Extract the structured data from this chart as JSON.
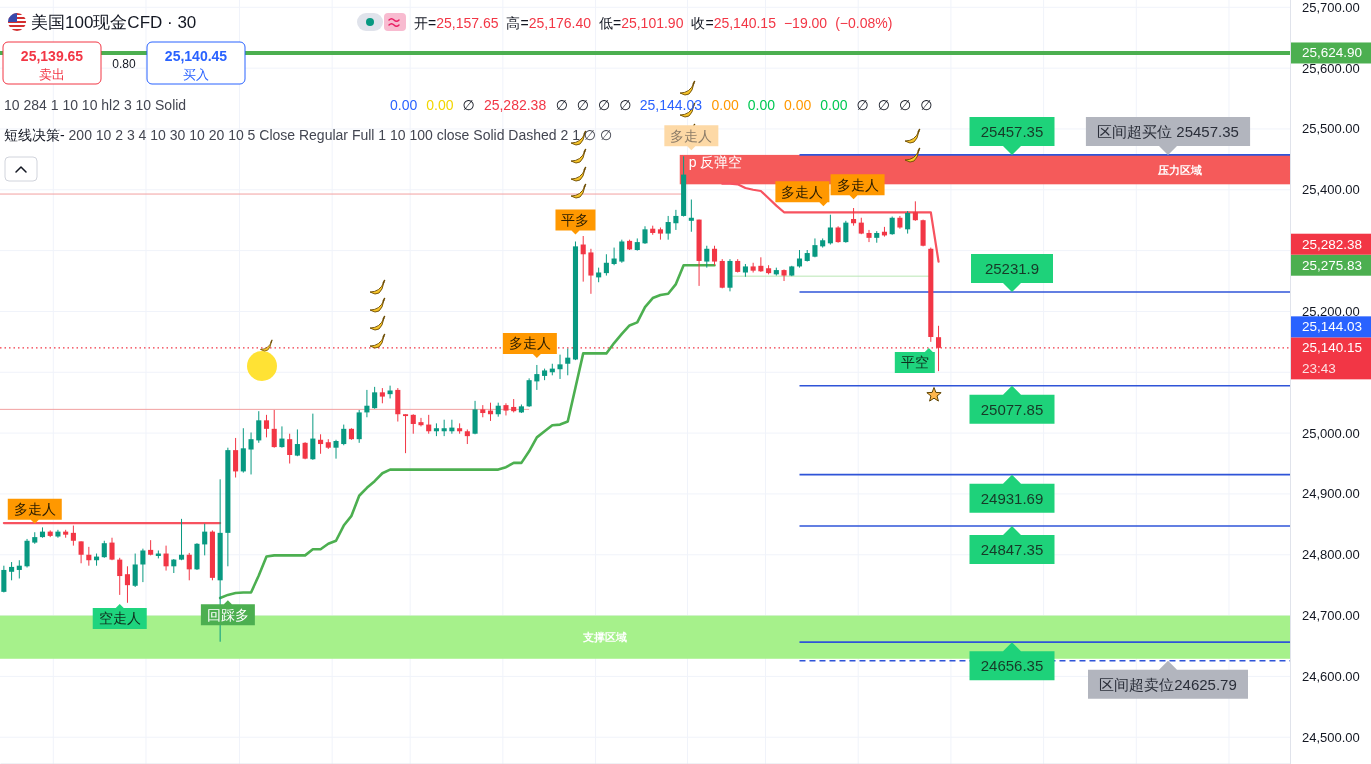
{
  "chart_data": {
    "type": "candlestick",
    "title": "美国100现金CFD · 30",
    "subtitle": "开=25,157.65 高=25,176.40 低=25,101.90 收=25,140.15 −19.00 (−0.08%)",
    "categories": [
      null,
      null,
      null,
      null,
      null,
      null,
      null,
      null,
      null,
      null,
      null,
      null,
      null,
      null,
      null,
      null,
      null,
      null,
      null,
      null,
      null,
      null,
      null,
      null,
      null,
      null,
      null,
      null,
      null,
      null,
      null,
      null,
      null,
      null,
      null,
      null,
      null,
      null,
      null,
      null,
      null,
      null,
      null,
      null,
      null,
      null,
      null,
      null,
      null,
      null,
      null,
      null,
      null,
      null,
      null,
      null,
      null,
      null,
      null,
      null,
      null,
      null,
      null,
      null,
      null,
      null,
      null,
      null,
      null,
      null,
      null,
      null,
      null,
      null,
      null,
      null,
      null,
      null,
      null,
      null,
      null,
      null,
      null,
      null,
      null,
      null,
      null,
      null,
      null,
      null,
      null,
      null,
      null,
      null,
      null,
      null,
      null,
      null,
      null,
      null,
      null,
      null,
      null,
      null,
      null,
      null,
      null,
      null,
      null,
      null,
      null,
      null,
      null,
      null,
      null,
      null,
      null,
      null,
      null,
      null,
      null,
      null,
      null,
      null,
      null,
      null,
      null,
      null,
      null,
      null,
      null,
      null,
      null,
      null,
      null,
      null,
      null,
      null,
      null,
      null,
      null,
      null,
      null,
      null,
      null,
      null,
      null,
      null,
      null,
      null,
      null,
      null,
      null,
      null,
      null,
      null,
      null,
      null,
      null,
      null,
      null,
      null,
      null,
      null,
      null,
      null,
      null
    ],
    "ohlc": [
      [
        24739,
        24782,
        24738,
        24775
      ],
      [
        24772,
        24788,
        24758,
        24780
      ],
      [
        24775,
        24791,
        24761,
        24782
      ],
      [
        24781,
        24826,
        24779,
        24823
      ],
      [
        24820,
        24837,
        24818,
        24829
      ],
      [
        24829,
        24845,
        24828,
        24838
      ],
      [
        24838,
        24840,
        24829,
        24831
      ],
      [
        24830,
        24841,
        24828,
        24838
      ],
      [
        24838,
        24841,
        24828,
        24833
      ],
      [
        24836,
        24848,
        24815,
        24823
      ],
      [
        24822,
        24822,
        24786,
        24800
      ],
      [
        24800,
        24813,
        24782,
        24791
      ],
      [
        24791,
        24802,
        24782,
        24797
      ],
      [
        24796,
        24823,
        24795,
        24819
      ],
      [
        24820,
        24828,
        24791,
        24792
      ],
      [
        24792,
        24795,
        24734,
        24765
      ],
      [
        24768,
        24781,
        24721,
        24750
      ],
      [
        24749,
        24802,
        24747,
        24784
      ],
      [
        24784,
        24810,
        24755,
        24807
      ],
      [
        24808,
        24824,
        24799,
        24800
      ],
      [
        24798,
        24807,
        24794,
        24802
      ],
      [
        24802,
        24815,
        24774,
        24781
      ],
      [
        24781,
        24793,
        24770,
        24792
      ],
      [
        24792,
        24859,
        24791,
        24800
      ],
      [
        24800,
        24803,
        24758,
        24776
      ],
      [
        24776,
        24819,
        24775,
        24818
      ],
      [
        24817,
        24851,
        24799,
        24838
      ],
      [
        24838,
        24840,
        24758,
        24762
      ],
      [
        24758,
        24924,
        24657,
        24836
      ],
      [
        24836,
        24976,
        24781,
        24972
      ],
      [
        24972,
        24992,
        24927,
        24937
      ],
      [
        24937,
        25008,
        24935,
        24975
      ],
      [
        24973,
        25001,
        24932,
        24990
      ],
      [
        24988,
        25036,
        24984,
        25021
      ],
      [
        25021,
        25030,
        24993,
        25007
      ],
      [
        25007,
        25038,
        24976,
        24977
      ],
      [
        24977,
        25011,
        24976,
        24991
      ],
      [
        24990,
        24999,
        24950,
        24964
      ],
      [
        24963,
        25006,
        24962,
        24982
      ],
      [
        24984,
        24985,
        24957,
        24958
      ],
      [
        24957,
        25032,
        24956,
        24991
      ],
      [
        24989,
        24998,
        24966,
        24982
      ],
      [
        24985,
        24990,
        24974,
        24976
      ],
      [
        24976,
        24989,
        24958,
        24987
      ],
      [
        24982,
        25014,
        24980,
        25007
      ],
      [
        25007,
        25008,
        24989,
        24990
      ],
      [
        24990,
        25038,
        24984,
        25034
      ],
      [
        25034,
        25071,
        25026,
        25045
      ],
      [
        25041,
        25076,
        25040,
        25067
      ],
      [
        25067,
        25074,
        25049,
        25060
      ],
      [
        25064,
        25078,
        25057,
        25070
      ],
      [
        25071,
        25074,
        25019,
        25031
      ],
      [
        25031,
        25031,
        24967,
        25028
      ],
      [
        25030,
        25031,
        24999,
        25015
      ],
      [
        25018,
        25025,
        25011,
        25013
      ],
      [
        25014,
        25030,
        24999,
        25003
      ],
      [
        25003,
        25016,
        24995,
        25008
      ],
      [
        25003,
        25022,
        24995,
        25008
      ],
      [
        25003,
        25022,
        24999,
        25009
      ],
      [
        25008,
        25016,
        24999,
        25003
      ],
      [
        25003,
        25006,
        24982,
        24995
      ],
      [
        24999,
        25053,
        24998,
        25039
      ],
      [
        25039,
        25046,
        25026,
        25033
      ],
      [
        25037,
        25050,
        25020,
        25031
      ],
      [
        25031,
        25050,
        25027,
        25045
      ],
      [
        25046,
        25049,
        25029,
        25037
      ],
      [
        25043,
        25056,
        25034,
        25036
      ],
      [
        25034,
        25047,
        25033,
        25044
      ],
      [
        25044,
        25090,
        25043,
        25087
      ],
      [
        25085,
        25112,
        25071,
        25097
      ],
      [
        25094,
        25106,
        25087,
        25103
      ],
      [
        25100,
        25114,
        25095,
        25106
      ],
      [
        25105,
        25129,
        25089,
        25113
      ],
      [
        25114,
        25139,
        25095,
        25124
      ],
      [
        25121,
        25315,
        25120,
        25307
      ],
      [
        25310,
        25324,
        25249,
        25294
      ],
      [
        25297,
        25303,
        25229,
        25259
      ],
      [
        25256,
        25272,
        25248,
        25264
      ],
      [
        25263,
        25294,
        25259,
        25280
      ],
      [
        25278,
        25305,
        25276,
        25287
      ],
      [
        25282,
        25318,
        25280,
        25315
      ],
      [
        25316,
        25318,
        25301,
        25302
      ],
      [
        25301,
        25320,
        25300,
        25314
      ],
      [
        25312,
        25340,
        25311,
        25335
      ],
      [
        25336,
        25341,
        25326,
        25329
      ],
      [
        25335,
        25338,
        25318,
        25328
      ],
      [
        25328,
        25357,
        25318,
        25347
      ],
      [
        25345,
        25367,
        25334,
        25357
      ],
      [
        25357,
        25455,
        25356,
        25425
      ],
      [
        25349,
        25384,
        25331,
        25354
      ],
      [
        25351,
        25351,
        25242,
        25283
      ],
      [
        25282,
        25308,
        25272,
        25303
      ],
      [
        25303,
        25308,
        25276,
        25282
      ],
      [
        25283,
        25286,
        25238,
        25239
      ],
      [
        25239,
        25286,
        25233,
        25283
      ],
      [
        25283,
        25286,
        25264,
        25265
      ],
      [
        25264,
        25278,
        25257,
        25274
      ],
      [
        25274,
        25280,
        25264,
        25267
      ],
      [
        25275,
        25289,
        25265,
        25266
      ],
      [
        25271,
        25276,
        25261,
        25263
      ],
      [
        25261,
        25272,
        25259,
        25268
      ],
      [
        25268,
        25269,
        25250,
        25259
      ],
      [
        25259,
        25275,
        25258,
        25274
      ],
      [
        25274,
        25301,
        25272,
        25287
      ],
      [
        25283,
        25301,
        25282,
        25296
      ],
      [
        25290,
        25320,
        25289,
        25309
      ],
      [
        25307,
        25320,
        25305,
        25317
      ],
      [
        25312,
        25359,
        25310,
        25338
      ],
      [
        25338,
        25340,
        25313,
        25314
      ],
      [
        25314,
        25349,
        25313,
        25346
      ],
      [
        25352,
        25370,
        25341,
        25345
      ],
      [
        25346,
        25354,
        25327,
        25328
      ],
      [
        25329,
        25334,
        25314,
        25321
      ],
      [
        25321,
        25332,
        25313,
        25329
      ],
      [
        25331,
        25339,
        25323,
        25325
      ],
      [
        25327,
        25356,
        25326,
        25354
      ],
      [
        25354,
        25357,
        25336,
        25338
      ],
      [
        25335,
        25365,
        25328,
        25362
      ],
      [
        25363,
        25381,
        25349,
        25350
      ],
      [
        25350,
        25351,
        25307,
        25308
      ],
      [
        25303,
        25305,
        25150,
        25158
      ],
      [
        25157.65,
        25176.4,
        25101.9,
        25140.15
      ],
      null,
      null,
      null,
      null,
      null,
      null,
      null,
      null,
      null,
      null,
      null,
      null,
      null,
      null,
      null,
      null,
      null,
      null,
      null,
      null,
      null,
      null,
      null,
      null,
      null,
      null,
      null,
      null,
      null,
      null,
      null,
      null,
      null,
      null,
      null,
      null,
      null,
      null,
      null,
      null,
      null,
      null,
      null,
      null,
      null
    ],
    "series": [
      {
        "type": "line",
        "color": "#4caf50",
        "values": [
          null,
          null,
          null,
          null,
          null,
          null,
          null,
          null,
          null,
          null,
          null,
          null,
          null,
          null,
          null,
          null,
          null,
          null,
          null,
          null,
          null,
          null,
          null,
          null,
          null,
          null,
          null,
          null,
          24729,
          24734,
          24737,
          24738,
          24738,
          24766,
          24797,
          24799,
          24799,
          24799,
          24799,
          24799,
          24809,
          24809,
          24818,
          24823,
          24848,
          24864,
          24897,
          24910,
          24921,
          24934,
          24940,
          24940,
          24940,
          24940,
          24940,
          24940,
          24940,
          24940,
          24940,
          24940,
          24940,
          24940,
          24940,
          24940,
          24940,
          24944,
          24951,
          24951,
          24970,
          24993,
          25003,
          25013,
          25014,
          25019,
          25075,
          25131,
          25131,
          25131,
          25131,
          25148,
          25163,
          25177,
          25182,
          25207,
          25222,
          25227,
          25229,
          25245,
          25276,
          25276,
          25276,
          25276,
          25276,
          null,
          null,
          null,
          null,
          null,
          null,
          null,
          null,
          null,
          null,
          null,
          null,
          null,
          null,
          null,
          null,
          null,
          null,
          null,
          null,
          null,
          null,
          null,
          null,
          null,
          null,
          null,
          null,
          null,
          null,
          null,
          null,
          null,
          null,
          null,
          null,
          null,
          null,
          null,
          null,
          null,
          null,
          null,
          null,
          null,
          null,
          null,
          null,
          null,
          null,
          null,
          null,
          null,
          null,
          null,
          null,
          null,
          null,
          null,
          null,
          null,
          null,
          null,
          null,
          null,
          null,
          null,
          null,
          null,
          null,
          null,
          null,
          null,
          null
        ]
      },
      {
        "type": "line",
        "color": "#f7525f",
        "values": [
          24852,
          24852,
          24852,
          24852,
          24852,
          24852,
          24852,
          24852,
          24852,
          24852,
          24852,
          24852,
          24852,
          24852,
          24852,
          24852,
          24852,
          24852,
          24852,
          24852,
          24852,
          24852,
          24852,
          24852,
          24852,
          24852,
          24852,
          24852,
          24852,
          null,
          null,
          null,
          null,
          null,
          null,
          null,
          null,
          null,
          null,
          null,
          null,
          null,
          null,
          null,
          null,
          null,
          null,
          null,
          null,
          null,
          null,
          null,
          null,
          null,
          null,
          null,
          null,
          null,
          null,
          null,
          null,
          null,
          null,
          null,
          null,
          null,
          null,
          null,
          null,
          null,
          null,
          null,
          null,
          null,
          null,
          null,
          null,
          null,
          null,
          null,
          null,
          null,
          null,
          null,
          null,
          null,
          null,
          null,
          null,
          null,
          null,
          null,
          null,
          25410,
          25410,
          25409,
          25403,
          25400,
          25398,
          25386,
          25374,
          25363,
          25363,
          25363,
          25363,
          25363,
          25363,
          25363,
          25363,
          25363,
          25363,
          25363,
          25363,
          25363,
          25363,
          25363,
          25363,
          25363,
          25363,
          25363,
          25363,
          25282,
          null,
          null,
          null,
          null,
          null,
          null,
          null,
          null,
          null,
          null,
          null,
          null,
          null,
          null,
          null,
          null,
          null,
          null,
          null,
          null,
          null,
          null,
          null,
          null,
          null,
          null,
          null,
          null,
          null,
          null,
          null,
          null,
          null,
          null,
          null,
          null,
          null,
          null,
          null,
          null,
          null,
          null,
          null,
          null,
          null
        ]
      }
    ],
    "ylim": [
      24456,
      25712
    ],
    "yticks": [
      {
        "value": 24500,
        "label": "24,500.00"
      },
      {
        "value": 24600,
        "label": "24,600.00"
      },
      {
        "value": 24700,
        "label": "24,700.00"
      },
      {
        "value": 24800,
        "label": "24,800.00"
      },
      {
        "value": 24900,
        "label": "24,900.00"
      },
      {
        "value": 25000,
        "label": "25,000.00"
      },
      {
        "value": 25100,
        "label": null
      },
      {
        "value": 25200,
        "label": "25,200.00"
      },
      {
        "value": 25300,
        "label": null
      },
      {
        "value": 25400,
        "label": "25,400.00"
      },
      {
        "value": 25500,
        "label": "25,500.00"
      },
      {
        "value": 25600,
        "label": "25,600.00"
      },
      {
        "value": 25700,
        "label": "25,700.00"
      }
    ],
    "grid": true,
    "ref_lines": [
      {
        "axis": "y",
        "value": 25624.9,
        "label": "25,624.90",
        "color": "#4caf50"
      },
      {
        "axis": "y",
        "value": 25140.15,
        "label": "25,140.15",
        "color": "#f23645",
        "line_style": "dotted"
      },
      {
        "axis": "y",
        "value": 25457.35,
        "label": "25457.35",
        "color": "#2f54d8"
      },
      {
        "axis": "y",
        "value": 25231.9,
        "label": "25231.9",
        "color": "#2f54d8"
      },
      {
        "axis": "y",
        "value": 25077.85,
        "label": "25077.85",
        "color": "#2f54d8"
      },
      {
        "axis": "y",
        "value": 24931.69,
        "label": "24931.69",
        "color": "#2f54d8"
      },
      {
        "axis": "y",
        "value": 24847.35,
        "label": "24847.35",
        "color": "#2f54d8"
      },
      {
        "axis": "y",
        "value": 24656.35,
        "label": "24656.35",
        "color": "#2f54d8"
      },
      {
        "axis": "y",
        "value": 24625.79,
        "color": "#2f54d8",
        "line_style": "dashed"
      },
      {
        "axis": "y",
        "value": 25393,
        "color": "#f2a0a0"
      },
      {
        "axis": "y",
        "value": 25039,
        "color": "#f2a0a0"
      },
      {
        "axis": "y",
        "value": 25258,
        "color": "#b9e6b3"
      }
    ],
    "bands": [
      {
        "axis": "y",
        "from": 25409,
        "to": 25457.35,
        "label": "压力区域",
        "color": "#f55a5a"
      },
      {
        "axis": "y",
        "from": 24629,
        "to": 24700,
        "label": "支撑区域",
        "color": "#a6f18b"
      }
    ],
    "annotations": [
      "25,139.65",
      "卖出",
      "0.80",
      "25,140.45",
      "买入",
      "10 284 1 10 10 hl2 3 10 Solid",
      "0.00 0.00 ∅",
      "25,282.38",
      "∅ ∅ ∅ ∅",
      "25,144.03",
      "0.00 0.00 0.00 0.00 ∅ ∅ ∅ ∅",
      "短线决策- 200 10 2 3 4 10 30 10 20 10 5 Close Regular Full 1 10 100 close Solid Dashed 2 1 ∅ ∅",
      {
        "text": "多走人",
        "y": 24851
      },
      "空走人",
      {
        "text": "回踩多",
        "y": 24725
      },
      "多走人",
      "平多",
      {
        "text": "多走人",
        "y": 25465
      },
      "p 反弹空",
      "多走人",
      "多走人",
      {
        "text": "平空",
        "y": 25140
      },
      {
        "text": "区间超买位 25457.35",
        "y": 25457.35
      },
      {
        "text": "区间超卖位24625.79",
        "y": 24625.79
      },
      "25,282.38",
      "25,275.83",
      "25,144.03",
      "23:43"
    ]
  }
}
